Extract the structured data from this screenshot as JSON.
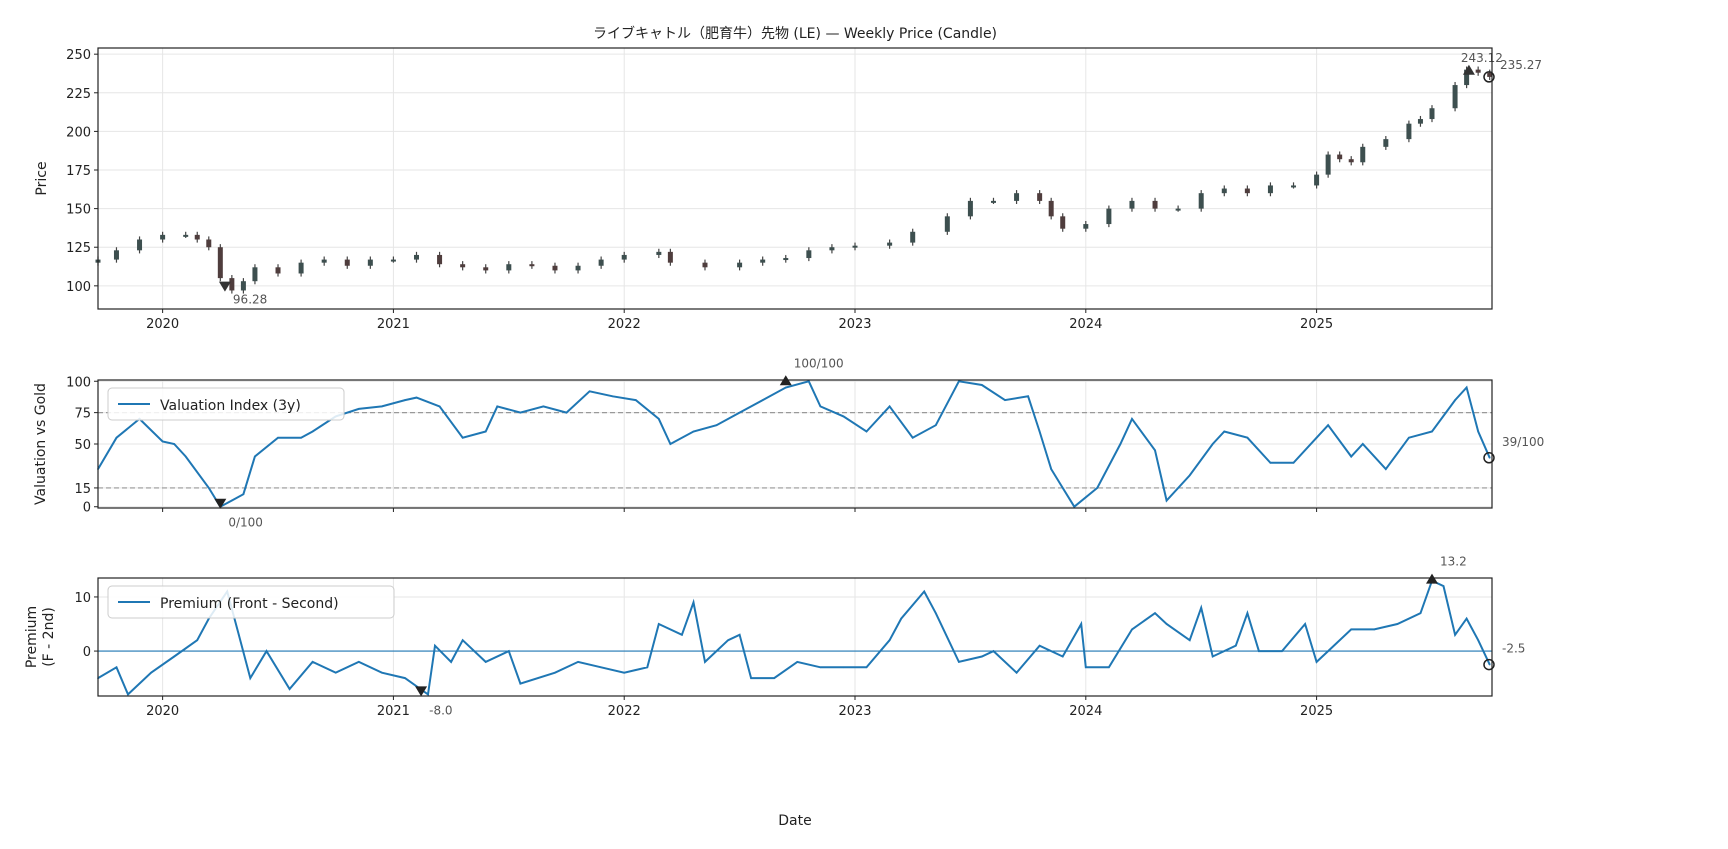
{
  "chart_data": {
    "title": "ライブキャトル（肥育牛）先物 (LE) — Weekly Price (Candle)",
    "xlabel": "Date",
    "x_ticks": [
      "2020",
      "2021",
      "2022",
      "2023",
      "2024",
      "2025"
    ],
    "xlim": [
      2019.72,
      2025.76
    ],
    "panels": [
      {
        "type": "candlestick",
        "ylabel": "Price",
        "ylim": [
          85,
          254
        ],
        "y_ticks": [
          100,
          125,
          150,
          175,
          200,
          225,
          250
        ],
        "grid": true,
        "x": [
          2019.72,
          2019.8,
          2019.9,
          2020.0,
          2020.1,
          2020.15,
          2020.2,
          2020.25,
          2020.3,
          2020.35,
          2020.4,
          2020.5,
          2020.6,
          2020.7,
          2020.8,
          2020.9,
          2021.0,
          2021.1,
          2021.2,
          2021.3,
          2021.4,
          2021.5,
          2021.6,
          2021.7,
          2021.8,
          2021.9,
          2022.0,
          2022.15,
          2022.2,
          2022.35,
          2022.5,
          2022.6,
          2022.7,
          2022.8,
          2022.9,
          2023.0,
          2023.15,
          2023.25,
          2023.4,
          2023.5,
          2023.6,
          2023.7,
          2023.8,
          2023.85,
          2023.9,
          2024.0,
          2024.1,
          2024.2,
          2024.3,
          2024.4,
          2024.5,
          2024.6,
          2024.7,
          2024.8,
          2024.9,
          2025.0,
          2025.05,
          2025.1,
          2025.15,
          2025.2,
          2025.3,
          2025.4,
          2025.45,
          2025.5,
          2025.6,
          2025.65,
          2025.7,
          2025.75
        ],
        "close": [
          117,
          123,
          130,
          133,
          133,
          130,
          125,
          105,
          97,
          103,
          112,
          108,
          115,
          117,
          113,
          117,
          117,
          120,
          114,
          112,
          110,
          114,
          113,
          110,
          113,
          117,
          120,
          122,
          115,
          112,
          115,
          117,
          118,
          123,
          125,
          126,
          128,
          135,
          145,
          155,
          155,
          160,
          155,
          145,
          137,
          140,
          150,
          155,
          150,
          150,
          160,
          163,
          160,
          165,
          165,
          172,
          185,
          182,
          180,
          190,
          195,
          205,
          208,
          215,
          230,
          240,
          238,
          235.27
        ],
        "annotations": {
          "min_label": "96.28",
          "min_x": 2020.27,
          "min_y": 96.28,
          "max_label": "243.12",
          "max_x": 2025.66,
          "max_y": 243.12,
          "last_label": "235.27"
        }
      },
      {
        "type": "line",
        "ylabel": "Valuation vs Gold",
        "legend": "Valuation Index (3y)",
        "legend_position": "upper-left",
        "ylim": [
          -1,
          101
        ],
        "y_ticks": [
          0,
          15,
          50,
          75,
          100
        ],
        "ref_lines": [
          75,
          15
        ],
        "color": "#1f77b4",
        "x": [
          2019.72,
          2019.8,
          2019.9,
          2020.0,
          2020.05,
          2020.1,
          2020.2,
          2020.25,
          2020.3,
          2020.35,
          2020.4,
          2020.5,
          2020.6,
          2020.65,
          2020.75,
          2020.85,
          2020.95,
          2021.05,
          2021.1,
          2021.2,
          2021.3,
          2021.4,
          2021.45,
          2021.55,
          2021.65,
          2021.75,
          2021.85,
          2021.95,
          2022.05,
          2022.15,
          2022.2,
          2022.3,
          2022.4,
          2022.5,
          2022.6,
          2022.7,
          2022.8,
          2022.85,
          2022.95,
          2023.05,
          2023.15,
          2023.25,
          2023.35,
          2023.45,
          2023.55,
          2023.65,
          2023.75,
          2023.8,
          2023.85,
          2023.9,
          2023.95,
          2024.05,
          2024.15,
          2024.2,
          2024.3,
          2024.35,
          2024.45,
          2024.55,
          2024.6,
          2024.7,
          2024.8,
          2024.9,
          2025.0,
          2025.05,
          2025.15,
          2025.2,
          2025.3,
          2025.4,
          2025.5,
          2025.6,
          2025.65,
          2025.7,
          2025.75
        ],
        "y": [
          30,
          55,
          70,
          52,
          50,
          40,
          15,
          0,
          5,
          10,
          40,
          55,
          55,
          60,
          72,
          78,
          80,
          85,
          87,
          80,
          55,
          60,
          80,
          75,
          80,
          75,
          92,
          88,
          85,
          70,
          50,
          60,
          65,
          75,
          85,
          95,
          100,
          80,
          72,
          60,
          80,
          55,
          65,
          100,
          97,
          85,
          88,
          60,
          30,
          15,
          0,
          15,
          50,
          70,
          45,
          5,
          25,
          50,
          60,
          55,
          35,
          35,
          55,
          65,
          40,
          50,
          30,
          55,
          60,
          85,
          95,
          60,
          39
        ],
        "annotations": {
          "min_label": "0/100",
          "min_x": 2020.25,
          "min_y": 0,
          "max_label": "100/100",
          "max_x": 2022.7,
          "max_y": 100,
          "last_label": "39/100"
        }
      },
      {
        "type": "line",
        "ylabel": "Premium",
        "ylabel2": "(F - 2nd)",
        "legend": "Premium (Front - Second)",
        "legend_position": "upper-left",
        "ylim": [
          -8.3,
          13.5
        ],
        "y_ticks": [
          0,
          10
        ],
        "ref_lines": [
          0
        ],
        "color": "#1f77b4",
        "x": [
          2019.72,
          2019.8,
          2019.85,
          2019.95,
          2020.05,
          2020.15,
          2020.2,
          2020.28,
          2020.33,
          2020.38,
          2020.45,
          2020.55,
          2020.65,
          2020.75,
          2020.85,
          2020.95,
          2021.05,
          2021.15,
          2021.18,
          2021.25,
          2021.3,
          2021.4,
          2021.5,
          2021.55,
          2021.7,
          2021.8,
          2021.9,
          2022.0,
          2022.1,
          2022.15,
          2022.25,
          2022.3,
          2022.35,
          2022.45,
          2022.5,
          2022.55,
          2022.65,
          2022.75,
          2022.85,
          2022.95,
          2023.05,
          2023.15,
          2023.2,
          2023.3,
          2023.35,
          2023.45,
          2023.55,
          2023.6,
          2023.7,
          2023.8,
          2023.9,
          2023.98,
          2024.0,
          2024.1,
          2024.2,
          2024.3,
          2024.35,
          2024.45,
          2024.5,
          2024.55,
          2024.65,
          2024.7,
          2024.75,
          2024.85,
          2024.95,
          2025.0,
          2025.05,
          2025.15,
          2025.25,
          2025.35,
          2025.45,
          2025.5,
          2025.55,
          2025.6,
          2025.65,
          2025.7,
          2025.75
        ],
        "y": [
          -5,
          -3,
          -8,
          -4,
          -1,
          2,
          6,
          11,
          3,
          -5,
          0,
          -7,
          -2,
          -4,
          -2,
          -4,
          -5,
          -8,
          1,
          -2,
          2,
          -2,
          0,
          -6,
          -4,
          -2,
          -3,
          -4,
          -3,
          5,
          3,
          9,
          -2,
          2,
          3,
          -5,
          -5,
          -2,
          -3,
          -3,
          -3,
          2,
          6,
          11,
          7,
          -2,
          -1,
          0,
          -4,
          1,
          -1,
          5,
          -3,
          -3,
          4,
          7,
          5,
          2,
          8,
          -1,
          1,
          7,
          0,
          0,
          5,
          -2,
          0,
          4,
          4,
          5,
          7,
          13,
          12,
          3,
          6,
          2,
          -2.5
        ],
        "annotations": {
          "min_label": "-8.0",
          "min_x": 2021.12,
          "min_y": -8.0,
          "max_label": "13.2",
          "max_x": 2025.5,
          "max_y": 13.2,
          "last_label": "-2.5"
        }
      }
    ]
  }
}
